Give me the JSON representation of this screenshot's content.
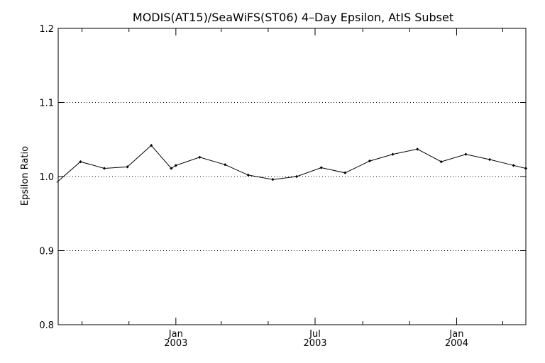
{
  "chart_data": {
    "type": "line",
    "title": "MODIS(AT15)/SeaWiFS(ST06) 4–Day Epsilon, AtIS Subset",
    "xlabel": "",
    "ylabel": "Epsilon Ratio",
    "ylim": [
      0.8,
      1.2
    ],
    "xlim": [
      "2002-08-01",
      "2004-03-31"
    ],
    "y_ticks": [
      "0.8",
      "0.9",
      "1.0",
      "1.1",
      "1.2"
    ],
    "x_ticks": [
      {
        "date": "2003-01-01",
        "month": "Jan",
        "year": "2003"
      },
      {
        "date": "2003-07-01",
        "month": "Jul",
        "year": "2003"
      },
      {
        "date": "2004-01-01",
        "month": "Jan",
        "year": "2004"
      }
    ],
    "x_minor_ticks": [
      "2002-09-01",
      "2002-11-01",
      "2003-03-01",
      "2003-05-01",
      "2003-09-01",
      "2003-11-01",
      "2004-03-01"
    ],
    "grid": "dotted horizontal at 0.9, 1.0, 1.1",
    "series": [
      {
        "x": [
          "2002-07-30",
          "2002-08-30",
          "2002-09-30",
          "2002-10-30",
          "2002-11-30",
          "2002-12-26",
          "2003-01-01",
          "2003-02-01",
          "2003-03-06",
          "2003-04-05",
          "2003-05-07",
          "2003-06-07",
          "2003-07-09",
          "2003-08-09",
          "2003-09-10",
          "2003-10-10",
          "2003-11-11",
          "2003-12-12",
          "2004-01-13",
          "2004-02-13",
          "2004-03-15",
          "2004-03-31"
        ],
        "y": [
          0.992,
          1.02,
          1.011,
          1.013,
          1.042,
          1.011,
          1.015,
          1.026,
          1.016,
          1.002,
          0.996,
          1.0,
          1.012,
          1.005,
          1.021,
          1.03,
          1.037,
          1.02,
          1.03,
          1.023,
          1.015,
          1.011
        ]
      }
    ],
    "colors": {
      "line": "#000000",
      "axes": "#000000",
      "grid": "#000000",
      "background": "#ffffff"
    }
  }
}
